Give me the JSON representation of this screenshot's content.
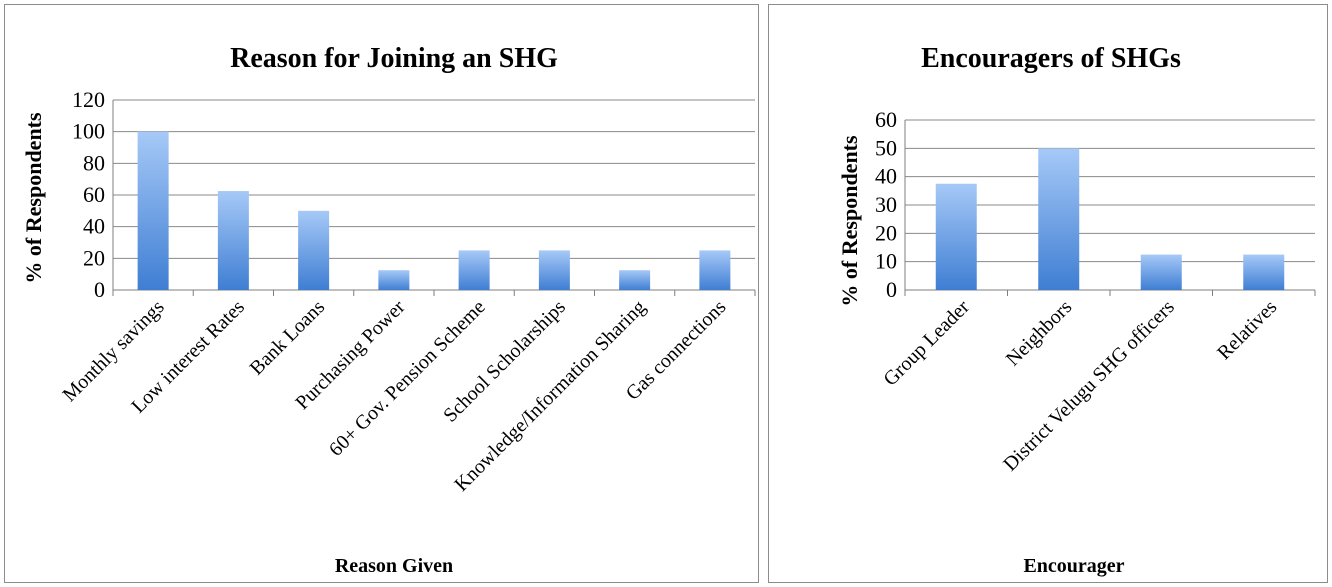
{
  "colors": {
    "bar_top": "#a6c9f7",
    "bar_bottom": "#3f7ed3",
    "grid": "#8a8a8a",
    "axis": "#7f7f7f"
  },
  "chart_data": [
    {
      "type": "bar",
      "title": "Reason for Joining an SHG",
      "xlabel": "Reason Given",
      "ylabel": "% of Respondents",
      "categories": [
        "Monthly savings",
        "Low interest Rates",
        "Bank Loans",
        "Purchasing Power",
        "60+ Gov. Pension Scheme",
        "School Scholarships",
        "Knowledge/Information Sharing",
        "Gas connections"
      ],
      "values": [
        100,
        62.5,
        50,
        12.5,
        25,
        25,
        12.5,
        25
      ],
      "ylim": [
        0,
        120
      ],
      "yticks": [
        "0",
        "20",
        "40",
        "60",
        "80",
        "100",
        "120"
      ],
      "grid": true,
      "legend": "none"
    },
    {
      "type": "bar",
      "title": "Encouragers of SHGs",
      "xlabel": "Encourager",
      "ylabel": "% of Respondents",
      "categories": [
        "Group Leader",
        "Neighbors",
        "District Velugu SHG officers",
        "Relatives"
      ],
      "values": [
        37.5,
        50,
        12.5,
        12.5
      ],
      "ylim": [
        0,
        60
      ],
      "yticks": [
        "0",
        "10",
        "20",
        "30",
        "40",
        "50",
        "60"
      ],
      "grid": true,
      "legend": "none"
    }
  ]
}
